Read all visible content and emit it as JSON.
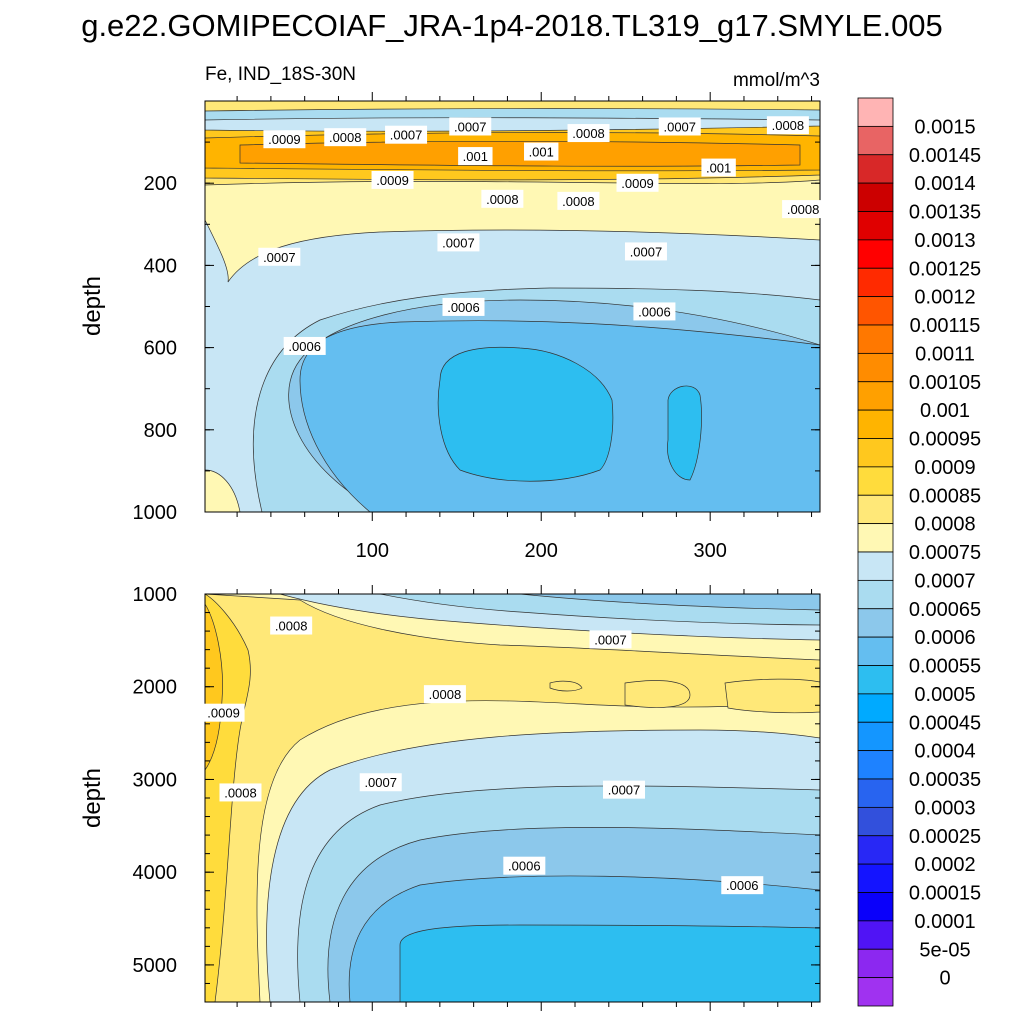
{
  "title": "g.e22.GOMIPECOIAF_JRA-1p4-2018.TL319_g17.SMYLE.005",
  "subtitle_left": "Fe, IND_18S-30N",
  "subtitle_right": "mmol/m^3",
  "chart_data": [
    {
      "type": "heatmap",
      "subtype": "filled-contour",
      "panel": "upper",
      "ylabel": "depth",
      "xlabel": "",
      "xlim": [
        1,
        365
      ],
      "ylim": [
        1000,
        0
      ],
      "x_ticks": [
        100,
        200,
        300
      ],
      "y_ticks": [
        200,
        400,
        600,
        800,
        1000
      ],
      "contour_labels": [
        {
          "x": 48,
          "y": 93,
          "text": ".0009"
        },
        {
          "x": 84,
          "y": 88,
          "text": ".0008"
        },
        {
          "x": 120,
          "y": 82,
          "text": ".0007"
        },
        {
          "x": 158,
          "y": 62,
          "text": ".0007"
        },
        {
          "x": 228,
          "y": 78,
          "text": ".0008"
        },
        {
          "x": 282,
          "y": 62,
          "text": ".0007"
        },
        {
          "x": 346,
          "y": 59,
          "text": ".0008"
        },
        {
          "x": 161,
          "y": 134,
          "text": ".001"
        },
        {
          "x": 200,
          "y": 123,
          "text": ".001"
        },
        {
          "x": 305,
          "y": 162,
          "text": ".001"
        },
        {
          "x": 112,
          "y": 192,
          "text": ".0009"
        },
        {
          "x": 257,
          "y": 199,
          "text": ".0009"
        },
        {
          "x": 177,
          "y": 238,
          "text": ".0008"
        },
        {
          "x": 222,
          "y": 243,
          "text": ".0008"
        },
        {
          "x": 355,
          "y": 263,
          "text": ".0008"
        },
        {
          "x": 45,
          "y": 379,
          "text": ".0007"
        },
        {
          "x": 151,
          "y": 344,
          "text": ".0007"
        },
        {
          "x": 262,
          "y": 366,
          "text": ".0007"
        },
        {
          "x": 154,
          "y": 501,
          "text": ".0006"
        },
        {
          "x": 267,
          "y": 512,
          "text": ".0006"
        },
        {
          "x": 60,
          "y": 596,
          "text": ".0006"
        }
      ]
    },
    {
      "type": "heatmap",
      "subtype": "filled-contour",
      "panel": "lower",
      "ylabel": "depth",
      "xlabel": "",
      "xlim": [
        1,
        365
      ],
      "ylim": [
        5400,
        1000
      ],
      "x_ticks": [
        100,
        200,
        300
      ],
      "y_ticks": [
        1000,
        2000,
        3000,
        4000,
        5000
      ],
      "contour_labels": [
        {
          "x": 52,
          "y": 1340,
          "text": ".0008"
        },
        {
          "x": 241,
          "y": 1490,
          "text": ".0007"
        },
        {
          "x": 143,
          "y": 2080,
          "text": ".0008"
        },
        {
          "x": 12,
          "y": 2280,
          "text": ".0009"
        },
        {
          "x": 22,
          "y": 3140,
          "text": ".0008"
        },
        {
          "x": 105,
          "y": 3030,
          "text": ".0007"
        },
        {
          "x": 249,
          "y": 3110,
          "text": ".0007"
        },
        {
          "x": 190,
          "y": 3930,
          "text": ".0006"
        },
        {
          "x": 319,
          "y": 4140,
          "text": ".0006"
        }
      ]
    }
  ],
  "colorbar": {
    "labels": [
      "0.0015",
      "0.00145",
      "0.0014",
      "0.00135",
      "0.0013",
      "0.00125",
      "0.0012",
      "0.00115",
      "0.0011",
      "0.00105",
      "0.001",
      "0.00095",
      "0.0009",
      "0.00085",
      "0.0008",
      "0.00075",
      "0.0007",
      "0.00065",
      "0.0006",
      "0.00055",
      "0.0005",
      "0.00045",
      "0.0004",
      "0.00035",
      "0.0003",
      "0.00025",
      "0.0002",
      "0.00015",
      "0.0001",
      "5e-05",
      "0"
    ],
    "colors_top_to_bottom": [
      "#FFB4B4",
      "#E86464",
      "#D82828",
      "#CC0000",
      "#E00000",
      "#FF0000",
      "#FF2A00",
      "#FF5500",
      "#FF7800",
      "#FF8C00",
      "#FFA000",
      "#FFB400",
      "#FFC81E",
      "#FFDC3C",
      "#FFE878",
      "#FFF8B4",
      "#C8E6F5",
      "#AADCF0",
      "#8CC8EB",
      "#64BEF0",
      "#2DBEF0",
      "#00AAFF",
      "#1496FF",
      "#1E82FF",
      "#2864F0",
      "#3250DC",
      "#2828F5",
      "#1414FF",
      "#0A00FA",
      "#5014F5",
      "#8C28F0",
      "#A032F0"
    ]
  }
}
